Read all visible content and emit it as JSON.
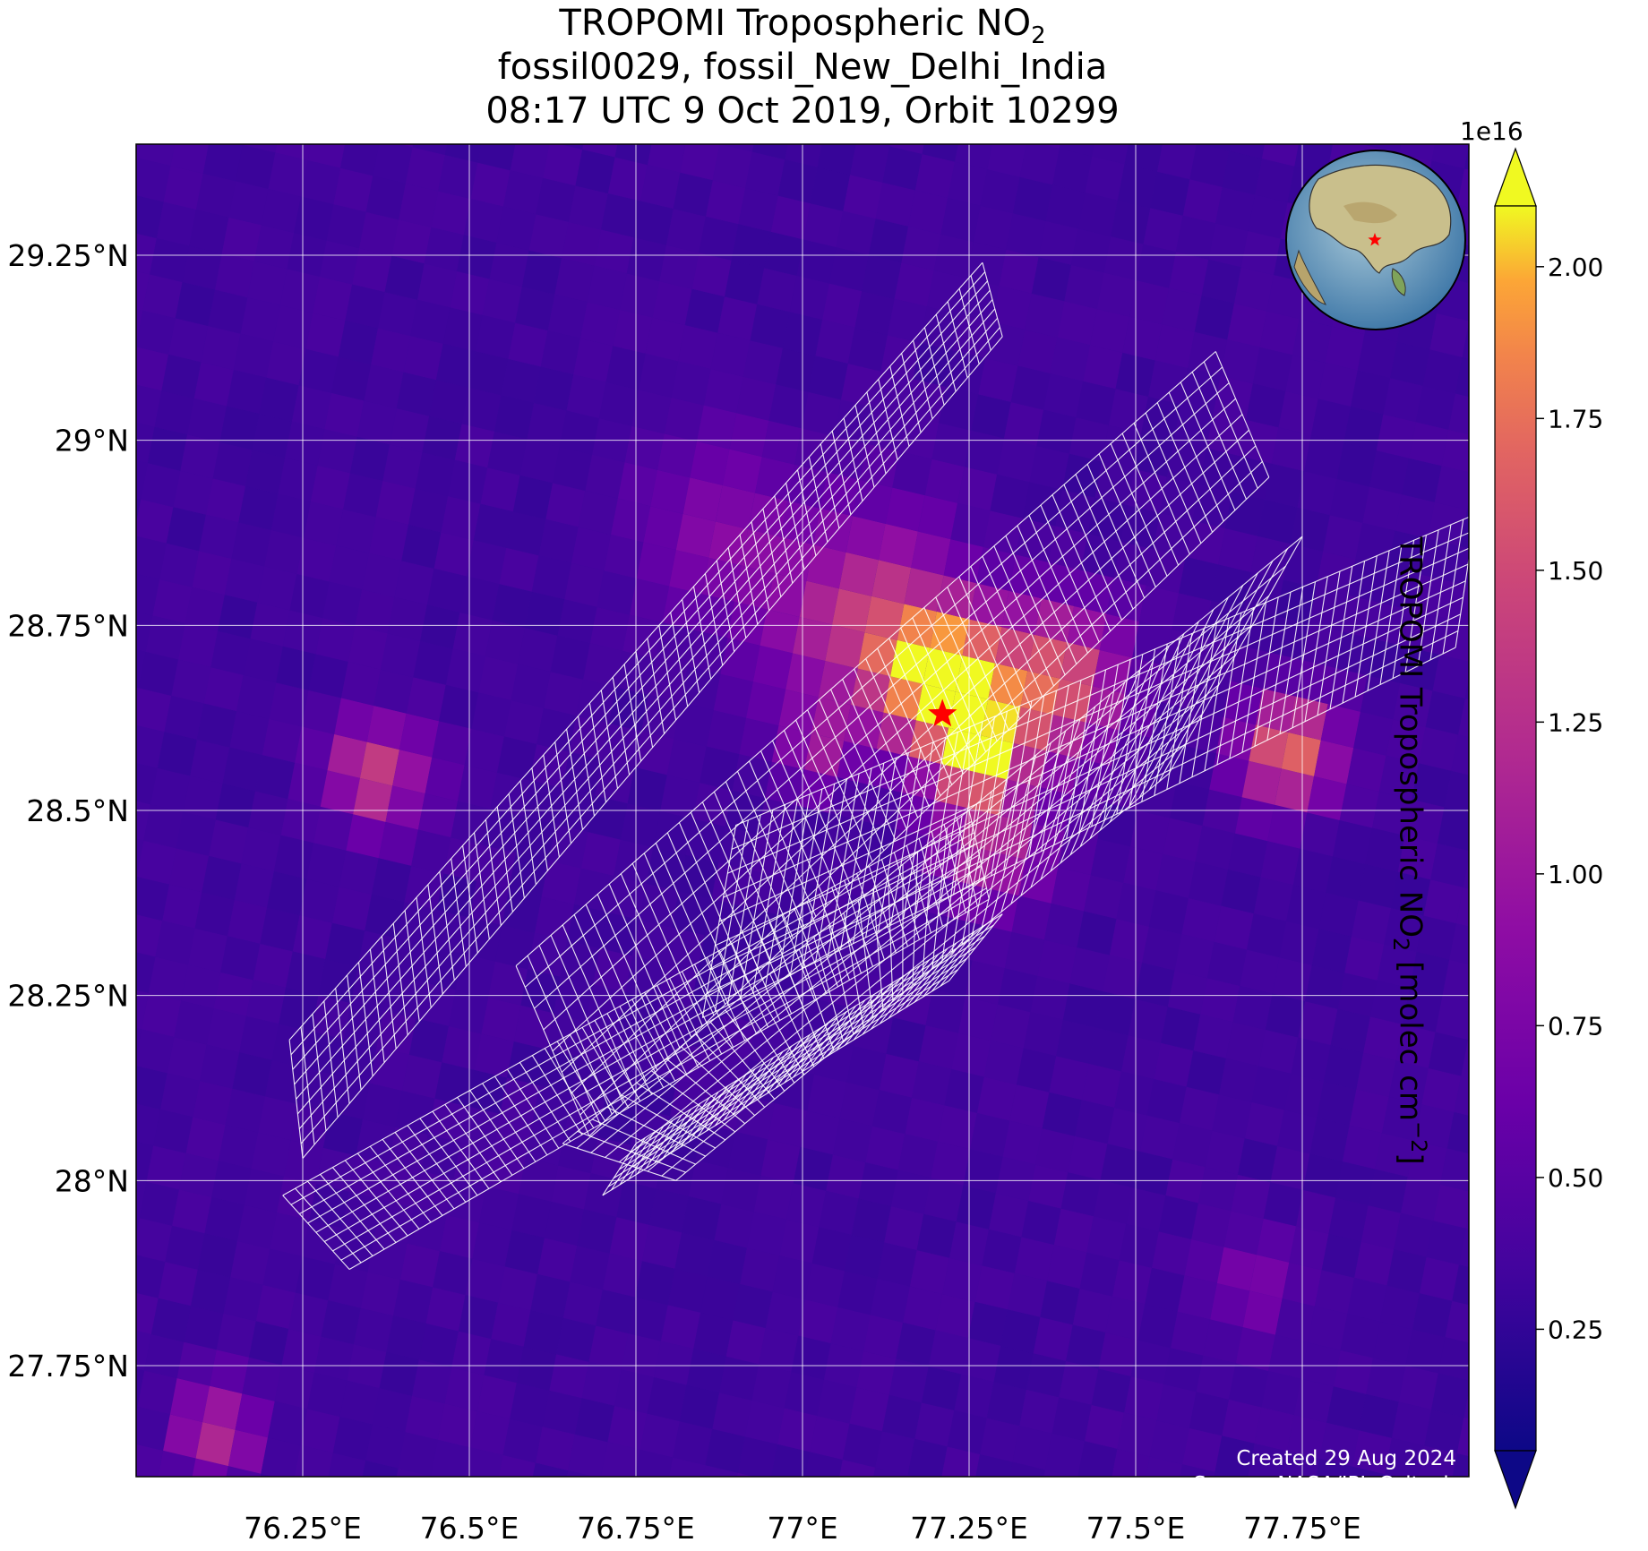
{
  "title": {
    "line1_prefix": "TROPOMI Tropospheric NO",
    "line1_sub": "2",
    "line2": "fossil0029, fossil_New_Delhi_India",
    "line3": "08:17 UTC 9 Oct 2019, Orbit 10299"
  },
  "map": {
    "lon_range": [
      76.0,
      78.0
    ],
    "lat_range": [
      27.6,
      29.4
    ],
    "x_ticks": [
      {
        "value": 76.25,
        "label": "76.25°E"
      },
      {
        "value": 76.5,
        "label": "76.5°E"
      },
      {
        "value": 76.75,
        "label": "76.75°E"
      },
      {
        "value": 77.0,
        "label": "77°E"
      },
      {
        "value": 77.25,
        "label": "77.25°E"
      },
      {
        "value": 77.5,
        "label": "77.5°E"
      },
      {
        "value": 77.75,
        "label": "77.75°E"
      }
    ],
    "y_ticks": [
      {
        "value": 29.25,
        "label": "29.25°N"
      },
      {
        "value": 29.0,
        "label": "29°N"
      },
      {
        "value": 28.75,
        "label": "28.75°N"
      },
      {
        "value": 28.5,
        "label": "28.5°N"
      },
      {
        "value": 28.25,
        "label": "28.25°N"
      },
      {
        "value": 28.0,
        "label": "28°N"
      },
      {
        "value": 27.75,
        "label": "27.75°N"
      }
    ],
    "target": {
      "name": "fossil_New_Delhi_India",
      "lon": 77.21,
      "lat": 28.63,
      "marker": "red-star"
    },
    "grid": true,
    "inset_globe": {
      "position": "top-right",
      "marker": "red-star"
    },
    "overlay": "white sounding-footprint grid (OCO target swaths)"
  },
  "colorbar": {
    "label_prefix": "TROPOMI Tropospheric NO",
    "label_sub": "2",
    "label_suffix": " [molec cm",
    "label_sup": "−2",
    "label_end": "]",
    "multiplier": "1e16",
    "range": [
      0.05,
      2.1
    ],
    "ticks": [
      "0.25",
      "0.50",
      "0.75",
      "1.00",
      "1.25",
      "1.50",
      "1.75",
      "2.00"
    ],
    "tick_values": [
      0.25,
      0.5,
      0.75,
      1.0,
      1.25,
      1.5,
      1.75,
      2.0
    ],
    "colormap": "plasma",
    "extend": "both"
  },
  "credits": {
    "created": "Created 29 Aug 2024",
    "source": "Source: NASA/JPL-Caltech"
  },
  "colors": {
    "low": "#0d0887",
    "mid": "#9c179e",
    "high": "#f0f921",
    "target_marker": "#ff0000",
    "grid_line": "#ffffff"
  }
}
